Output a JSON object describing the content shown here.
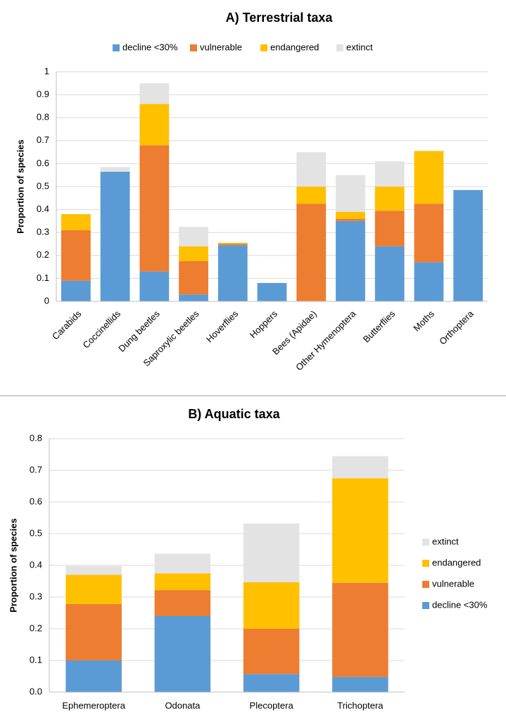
{
  "chart_data": [
    {
      "type": "bar",
      "stacked": true,
      "title": "A) Terrestrial taxa",
      "y_label": "Proportion of species",
      "categories": [
        "Carabids",
        "Coccinellids",
        "Dung beetles",
        "Saproxylic beetles",
        "Hoverflies",
        "Hoppers",
        "Bees (Apidae)",
        "Other Hymenoptera",
        "Butterflies",
        "Moths",
        "Orthoptera"
      ],
      "series": [
        {
          "name": "decline <30%",
          "color": "#5b9bd5",
          "values": [
            0.09,
            0.565,
            0.13,
            0.03,
            0.245,
            0.08,
            0,
            0.35,
            0.24,
            0.17,
            0.485
          ]
        },
        {
          "name": "vulnerable",
          "color": "#ed7d31",
          "values": [
            0.22,
            0,
            0.55,
            0.145,
            0.005,
            0,
            0.425,
            0.01,
            0.155,
            0.255,
            0
          ]
        },
        {
          "name": "endangered",
          "color": "#ffc000",
          "values": [
            0.07,
            0,
            0.18,
            0.065,
            0.005,
            0,
            0.075,
            0.03,
            0.105,
            0.23,
            0
          ]
        },
        {
          "name": "extinct",
          "color": "#e3e3e3",
          "values": [
            0,
            0.02,
            0.09,
            0.085,
            0,
            0,
            0.15,
            0.16,
            0.11,
            0,
            0
          ]
        }
      ],
      "ylim": [
        0,
        1
      ],
      "yticks": [
        0,
        0.1,
        0.2,
        0.3,
        0.4,
        0.5,
        0.6,
        0.7,
        0.8,
        0.9,
        1
      ],
      "grid": true,
      "legend": "top"
    },
    {
      "type": "bar",
      "stacked": true,
      "title": "B) Aquatic taxa",
      "y_label": "Proportion of species",
      "categories": [
        "Ephemeroptera",
        "Odonata",
        "Plecoptera",
        "Trichoptera"
      ],
      "series": [
        {
          "name": "decline <30%",
          "color": "#5b9bd5",
          "values": [
            0.1,
            0.24,
            0.057,
            0.048
          ]
        },
        {
          "name": "vulnerable",
          "color": "#ed7d31",
          "values": [
            0.178,
            0.082,
            0.143,
            0.297
          ]
        },
        {
          "name": "endangered",
          "color": "#ffc000",
          "values": [
            0.092,
            0.053,
            0.147,
            0.33
          ]
        },
        {
          "name": "extinct",
          "color": "#e3e3e3",
          "values": [
            0.028,
            0.062,
            0.185,
            0.07
          ]
        }
      ],
      "ylim": [
        0,
        0.8
      ],
      "yticks": [
        {
          "value": 0,
          "label": "0.0"
        },
        0.1,
        0.2,
        0.3,
        0.4,
        0.5,
        0.6,
        0.7,
        0.8
      ],
      "grid": true,
      "legend": "right"
    }
  ]
}
